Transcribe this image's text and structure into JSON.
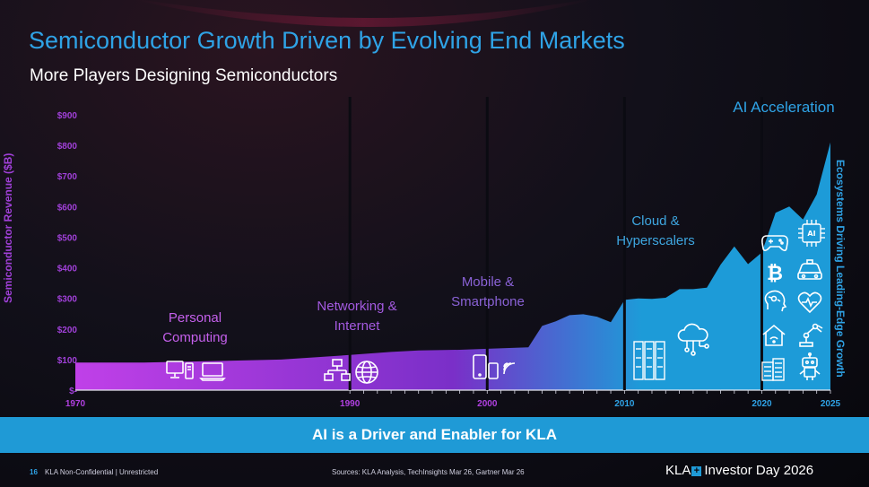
{
  "header": {
    "title": "Semiconductor Growth Driven by Evolving End Markets",
    "subtitle": "More Players Designing Semiconductors"
  },
  "chart_data": {
    "type": "area",
    "title": "Semiconductor Growth Driven by Evolving End Markets",
    "ylabel": "Semiconductor Revenue ($B)",
    "right_label": "Ecosystems Driving Leading-Edge Growth",
    "ylim": [
      0,
      900
    ],
    "xlim": [
      1970,
      2025
    ],
    "y_ticks": [
      {
        "value": 900,
        "label": "$900"
      },
      {
        "value": 800,
        "label": "$800"
      },
      {
        "value": 700,
        "label": "$700"
      },
      {
        "value": 600,
        "label": "$600"
      },
      {
        "value": 500,
        "label": "$500"
      },
      {
        "value": 400,
        "label": "$400"
      },
      {
        "value": 300,
        "label": "$300"
      },
      {
        "value": 200,
        "label": "$200"
      },
      {
        "value": 100,
        "label": "$100"
      },
      {
        "value": 0,
        "label": "$-"
      }
    ],
    "x_ticks": [
      {
        "value": 1970,
        "label": "1970",
        "color": "#b040e0"
      },
      {
        "value": 1990,
        "label": "1990",
        "color": "#b040e0"
      },
      {
        "value": 2000,
        "label": "2000",
        "color": "#b040e0"
      },
      {
        "value": 2010,
        "label": "2010",
        "color": "#2fa3e6"
      },
      {
        "value": 2020,
        "label": "2020",
        "color": "#2fa3e6"
      },
      {
        "value": 2025,
        "label": "2025",
        "color": "#2fa3e6"
      }
    ],
    "x": [
      1970,
      1975,
      1980,
      1985,
      1990,
      1993,
      1995,
      1998,
      2000,
      2003,
      2004,
      2005,
      2006,
      2007,
      2008,
      2009,
      2010,
      2011,
      2012,
      2013,
      2014,
      2015,
      2016,
      2017,
      2018,
      2019,
      2020,
      2021,
      2022,
      2023,
      2024,
      2025
    ],
    "values": [
      90,
      90,
      95,
      100,
      115,
      125,
      130,
      132,
      135,
      140,
      210,
      225,
      245,
      248,
      240,
      222,
      295,
      300,
      298,
      302,
      330,
      330,
      335,
      410,
      470,
      412,
      450,
      580,
      600,
      558,
      640,
      810
    ],
    "eras": [
      {
        "name": "Personal Computing",
        "start": 1970,
        "end": 1990
      },
      {
        "name": "Networking & Internet",
        "start": 1990,
        "end": 2000
      },
      {
        "name": "Mobile & Smartphone",
        "start": 2000,
        "end": 2010
      },
      {
        "name": "Cloud & Hyperscalers",
        "start": 2010,
        "end": 2020
      },
      {
        "name": "AI Acceleration",
        "start": 2020,
        "end": 2025
      }
    ],
    "colors": {
      "start": "#c040e8",
      "mid": "#7a2fc8",
      "end": "#1d9bd8"
    }
  },
  "annotations": {
    "personal_computing": "Personal Computing",
    "networking": "Networking & Internet",
    "mobile": "Mobile & Smartphone",
    "cloud": "Cloud & Hyperscalers",
    "ai": "AI Acceleration"
  },
  "icons": [
    "desktop-computer-icon",
    "laptop-icon",
    "network-icon",
    "globe-icon",
    "smartphone-icon",
    "wifi-icon",
    "server-rack-icon",
    "cloud-network-icon",
    "gamepad-icon",
    "ai-chip-icon",
    "bitcoin-icon",
    "car-icon",
    "ai-head-icon",
    "heart-rate-icon",
    "smart-home-icon",
    "robot-arm-icon",
    "data-center-icon",
    "robot-icon"
  ],
  "banner": "AI is a Driver and Enabler for KLA",
  "footer": {
    "page_number": "16",
    "classification": "KLA Non-Confidential | Unrestricted",
    "sources": "Sources: KLA Analysis, TechInsights Mar 26, Gartner Mar 26",
    "brand_name": "KLA",
    "brand_event": "Investor Day 2026"
  }
}
